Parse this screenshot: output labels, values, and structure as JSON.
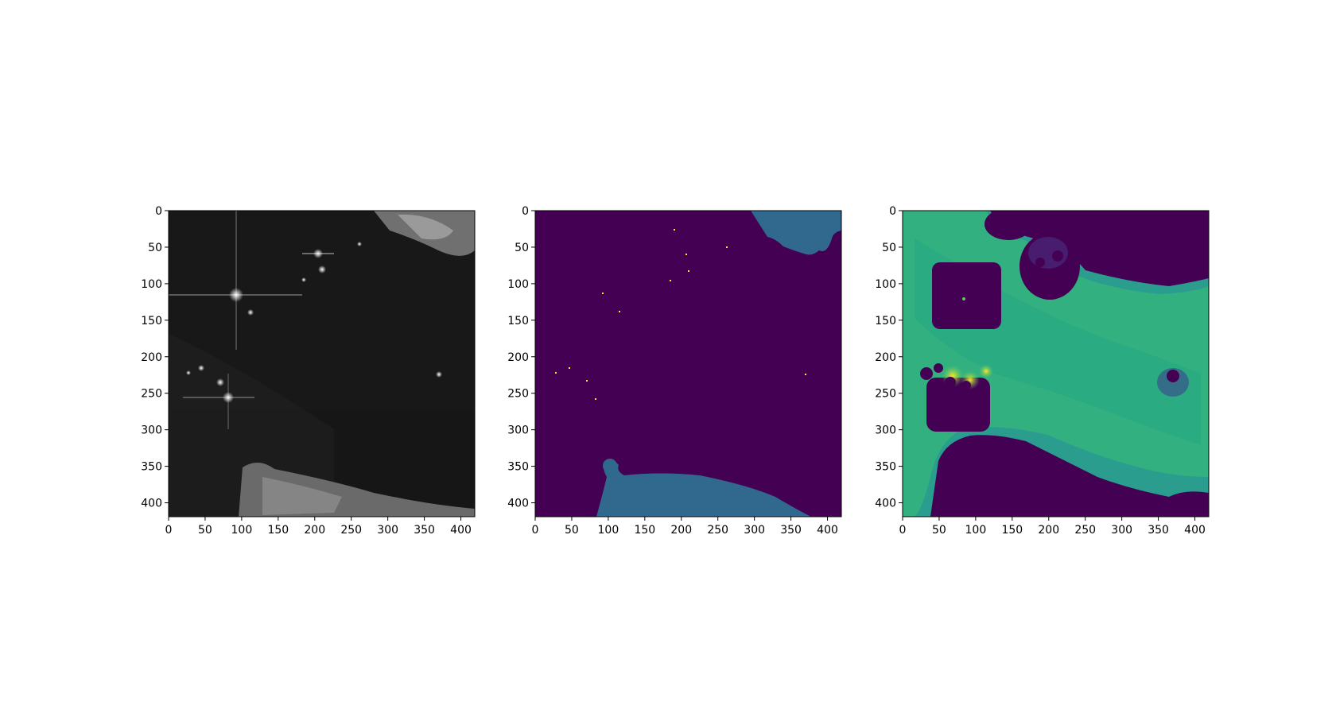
{
  "chart_data": [
    {
      "type": "heatmap",
      "colormap": "gray",
      "content": "SAR satellite image: dark sea, bright point targets (ships) with cross-shaped sidelobes, bright land at top-right and bottom-left",
      "xlim": [
        0,
        419
      ],
      "ylim": [
        419,
        0
      ],
      "x_ticks": [
        "0",
        "50",
        "100",
        "150",
        "200",
        "250",
        "300",
        "350",
        "400"
      ],
      "y_ticks": [
        "0",
        "50",
        "100",
        "150",
        "200",
        "250",
        "300",
        "350",
        "400"
      ]
    },
    {
      "type": "heatmap",
      "colormap": "viridis",
      "content": "Segmentation mask: background (dark purple), land (teal) at top-right and bottom, ship pixels (yellow dots)",
      "xlim": [
        0,
        419
      ],
      "ylim": [
        419,
        0
      ],
      "x_ticks": [
        "0",
        "50",
        "100",
        "150",
        "200",
        "250",
        "300",
        "350",
        "400"
      ],
      "y_ticks": [
        "0",
        "50",
        "100",
        "150",
        "200",
        "250",
        "300",
        "350",
        "400"
      ]
    },
    {
      "type": "heatmap",
      "colormap": "viridis",
      "content": "Distance/probability map: green-teal sea area, purple land and ship-neighbourhood blobs, yellow near ships",
      "xlim": [
        0,
        419
      ],
      "ylim": [
        419,
        0
      ],
      "x_ticks": [
        "0",
        "50",
        "100",
        "150",
        "200",
        "250",
        "300",
        "350",
        "400"
      ],
      "y_ticks": [
        "0",
        "50",
        "100",
        "150",
        "200",
        "250",
        "300",
        "350",
        "400"
      ]
    }
  ]
}
